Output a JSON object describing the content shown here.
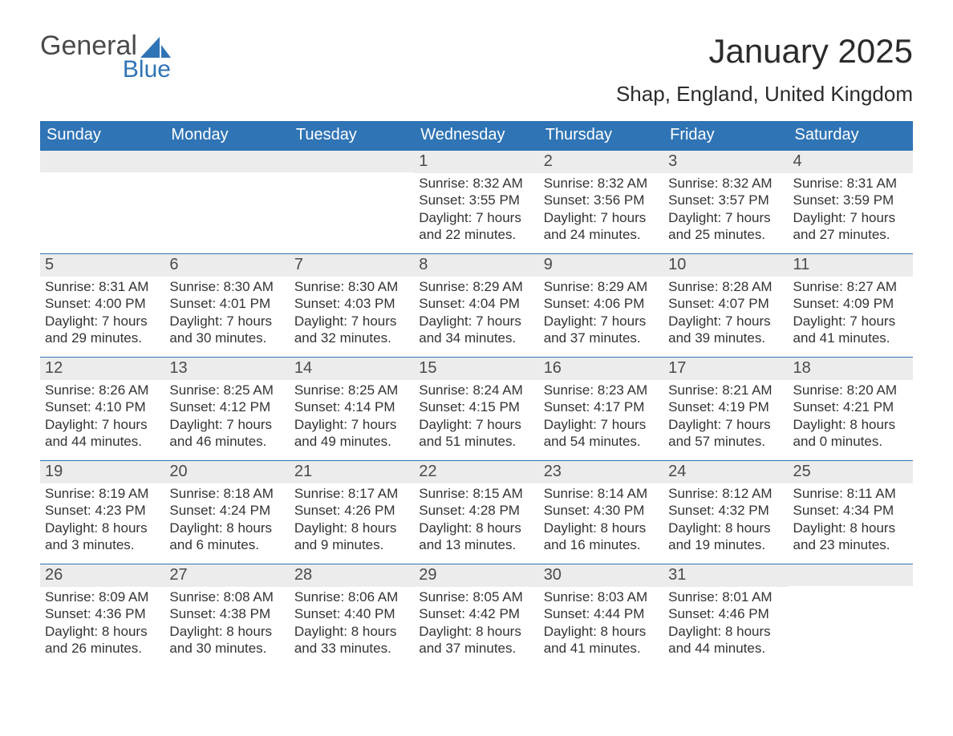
{
  "logo": {
    "word1": "General",
    "word2": "Blue",
    "sail_color": "#2f74b5"
  },
  "title": "January 2025",
  "location": "Shap, England, United Kingdom",
  "colors": {
    "header_bg": "#2f74b5",
    "header_text": "#ffffff",
    "strip_bg": "#ececec",
    "strip_text": "#4a4a4a",
    "body_text": "#333333",
    "rule": "#2f74b5"
  },
  "day_headers": [
    "Sunday",
    "Monday",
    "Tuesday",
    "Wednesday",
    "Thursday",
    "Friday",
    "Saturday"
  ],
  "weeks": [
    [
      {
        "num": "",
        "sunrise": "",
        "sunset": "",
        "daylight": ""
      },
      {
        "num": "",
        "sunrise": "",
        "sunset": "",
        "daylight": ""
      },
      {
        "num": "",
        "sunrise": "",
        "sunset": "",
        "daylight": ""
      },
      {
        "num": "1",
        "sunrise": "Sunrise: 8:32 AM",
        "sunset": "Sunset: 3:55 PM",
        "daylight": "Daylight: 7 hours and 22 minutes."
      },
      {
        "num": "2",
        "sunrise": "Sunrise: 8:32 AM",
        "sunset": "Sunset: 3:56 PM",
        "daylight": "Daylight: 7 hours and 24 minutes."
      },
      {
        "num": "3",
        "sunrise": "Sunrise: 8:32 AM",
        "sunset": "Sunset: 3:57 PM",
        "daylight": "Daylight: 7 hours and 25 minutes."
      },
      {
        "num": "4",
        "sunrise": "Sunrise: 8:31 AM",
        "sunset": "Sunset: 3:59 PM",
        "daylight": "Daylight: 7 hours and 27 minutes."
      }
    ],
    [
      {
        "num": "5",
        "sunrise": "Sunrise: 8:31 AM",
        "sunset": "Sunset: 4:00 PM",
        "daylight": "Daylight: 7 hours and 29 minutes."
      },
      {
        "num": "6",
        "sunrise": "Sunrise: 8:30 AM",
        "sunset": "Sunset: 4:01 PM",
        "daylight": "Daylight: 7 hours and 30 minutes."
      },
      {
        "num": "7",
        "sunrise": "Sunrise: 8:30 AM",
        "sunset": "Sunset: 4:03 PM",
        "daylight": "Daylight: 7 hours and 32 minutes."
      },
      {
        "num": "8",
        "sunrise": "Sunrise: 8:29 AM",
        "sunset": "Sunset: 4:04 PM",
        "daylight": "Daylight: 7 hours and 34 minutes."
      },
      {
        "num": "9",
        "sunrise": "Sunrise: 8:29 AM",
        "sunset": "Sunset: 4:06 PM",
        "daylight": "Daylight: 7 hours and 37 minutes."
      },
      {
        "num": "10",
        "sunrise": "Sunrise: 8:28 AM",
        "sunset": "Sunset: 4:07 PM",
        "daylight": "Daylight: 7 hours and 39 minutes."
      },
      {
        "num": "11",
        "sunrise": "Sunrise: 8:27 AM",
        "sunset": "Sunset: 4:09 PM",
        "daylight": "Daylight: 7 hours and 41 minutes."
      }
    ],
    [
      {
        "num": "12",
        "sunrise": "Sunrise: 8:26 AM",
        "sunset": "Sunset: 4:10 PM",
        "daylight": "Daylight: 7 hours and 44 minutes."
      },
      {
        "num": "13",
        "sunrise": "Sunrise: 8:25 AM",
        "sunset": "Sunset: 4:12 PM",
        "daylight": "Daylight: 7 hours and 46 minutes."
      },
      {
        "num": "14",
        "sunrise": "Sunrise: 8:25 AM",
        "sunset": "Sunset: 4:14 PM",
        "daylight": "Daylight: 7 hours and 49 minutes."
      },
      {
        "num": "15",
        "sunrise": "Sunrise: 8:24 AM",
        "sunset": "Sunset: 4:15 PM",
        "daylight": "Daylight: 7 hours and 51 minutes."
      },
      {
        "num": "16",
        "sunrise": "Sunrise: 8:23 AM",
        "sunset": "Sunset: 4:17 PM",
        "daylight": "Daylight: 7 hours and 54 minutes."
      },
      {
        "num": "17",
        "sunrise": "Sunrise: 8:21 AM",
        "sunset": "Sunset: 4:19 PM",
        "daylight": "Daylight: 7 hours and 57 minutes."
      },
      {
        "num": "18",
        "sunrise": "Sunrise: 8:20 AM",
        "sunset": "Sunset: 4:21 PM",
        "daylight": "Daylight: 8 hours and 0 minutes."
      }
    ],
    [
      {
        "num": "19",
        "sunrise": "Sunrise: 8:19 AM",
        "sunset": "Sunset: 4:23 PM",
        "daylight": "Daylight: 8 hours and 3 minutes."
      },
      {
        "num": "20",
        "sunrise": "Sunrise: 8:18 AM",
        "sunset": "Sunset: 4:24 PM",
        "daylight": "Daylight: 8 hours and 6 minutes."
      },
      {
        "num": "21",
        "sunrise": "Sunrise: 8:17 AM",
        "sunset": "Sunset: 4:26 PM",
        "daylight": "Daylight: 8 hours and 9 minutes."
      },
      {
        "num": "22",
        "sunrise": "Sunrise: 8:15 AM",
        "sunset": "Sunset: 4:28 PM",
        "daylight": "Daylight: 8 hours and 13 minutes."
      },
      {
        "num": "23",
        "sunrise": "Sunrise: 8:14 AM",
        "sunset": "Sunset: 4:30 PM",
        "daylight": "Daylight: 8 hours and 16 minutes."
      },
      {
        "num": "24",
        "sunrise": "Sunrise: 8:12 AM",
        "sunset": "Sunset: 4:32 PM",
        "daylight": "Daylight: 8 hours and 19 minutes."
      },
      {
        "num": "25",
        "sunrise": "Sunrise: 8:11 AM",
        "sunset": "Sunset: 4:34 PM",
        "daylight": "Daylight: 8 hours and 23 minutes."
      }
    ],
    [
      {
        "num": "26",
        "sunrise": "Sunrise: 8:09 AM",
        "sunset": "Sunset: 4:36 PM",
        "daylight": "Daylight: 8 hours and 26 minutes."
      },
      {
        "num": "27",
        "sunrise": "Sunrise: 8:08 AM",
        "sunset": "Sunset: 4:38 PM",
        "daylight": "Daylight: 8 hours and 30 minutes."
      },
      {
        "num": "28",
        "sunrise": "Sunrise: 8:06 AM",
        "sunset": "Sunset: 4:40 PM",
        "daylight": "Daylight: 8 hours and 33 minutes."
      },
      {
        "num": "29",
        "sunrise": "Sunrise: 8:05 AM",
        "sunset": "Sunset: 4:42 PM",
        "daylight": "Daylight: 8 hours and 37 minutes."
      },
      {
        "num": "30",
        "sunrise": "Sunrise: 8:03 AM",
        "sunset": "Sunset: 4:44 PM",
        "daylight": "Daylight: 8 hours and 41 minutes."
      },
      {
        "num": "31",
        "sunrise": "Sunrise: 8:01 AM",
        "sunset": "Sunset: 4:46 PM",
        "daylight": "Daylight: 8 hours and 44 minutes."
      },
      {
        "num": "",
        "sunrise": "",
        "sunset": "",
        "daylight": ""
      }
    ]
  ]
}
